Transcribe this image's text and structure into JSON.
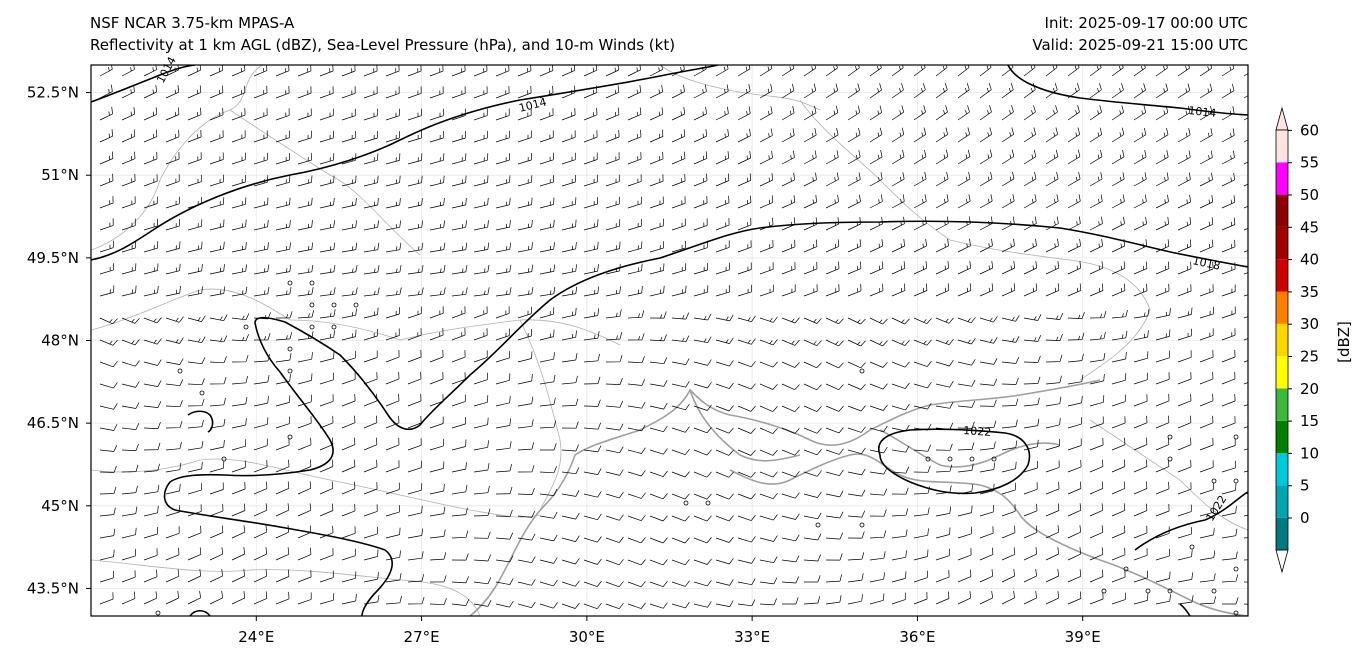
{
  "header": {
    "title_line1": "NSF NCAR 3.75-km MPAS-A",
    "title_line2": "Reflectivity at 1 km AGL (dBZ), Sea-Level Pressure (hPa), and 10-m Winds (kt)",
    "init": "Init: 2025-09-17 00:00 UTC",
    "valid": "Valid: 2025-09-21 15:00 UTC"
  },
  "map": {
    "lon_range": [
      21.0,
      42.0
    ],
    "lat_range": [
      43.0,
      53.0
    ],
    "lon_ticks": [
      "24°E",
      "27°E",
      "30°E",
      "33°E",
      "36°E",
      "39°E"
    ],
    "lat_ticks": [
      "52.5°N",
      "51°N",
      "49.5°N",
      "48°N",
      "46.5°N",
      "45°N",
      "43.5°N"
    ],
    "gridlines": true,
    "isobar_labels": [
      "1014",
      "1014",
      "1014",
      "1018",
      "1022",
      "1022"
    ]
  },
  "colorbar": {
    "label": "[dBZ]",
    "ticks": [
      "0",
      "5",
      "10",
      "15",
      "20",
      "25",
      "30",
      "35",
      "40",
      "45",
      "50",
      "55",
      "60"
    ],
    "colors": [
      "#007a80",
      "#00a5b0",
      "#00c8d8",
      "#40e0d0",
      "#008000",
      "#3cb83c",
      "#ffff00",
      "#ffd700",
      "#ffa500",
      "#ff7f00",
      "#cc0000",
      "#a00000",
      "#8b0000",
      "#ff00ff",
      "#ffe4e1"
    ]
  }
}
